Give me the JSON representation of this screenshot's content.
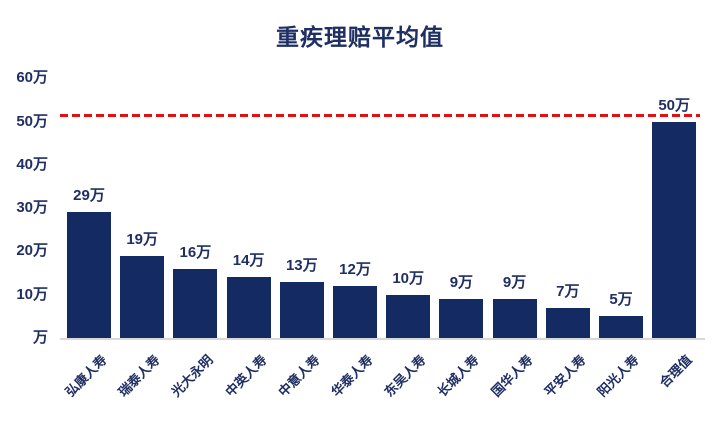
{
  "title": "重疾理赔平均值",
  "colors": {
    "navy_text": "#1F2E63",
    "bar_fill": "#132A62",
    "reference_line_red": "#E01112",
    "axis_gray": "#D9D9D9",
    "background": "#FFFFFF"
  },
  "chart_data": {
    "type": "bar",
    "title": "重疾理赔平均值",
    "categories": [
      "弘康人寿",
      "瑞泰人寿",
      "光大永明",
      "中英人寿",
      "中意人寿",
      "华泰人寿",
      "东吴人寿",
      "长城人寿",
      "国华人寿",
      "平安人寿",
      "阳光人寿",
      "合理值"
    ],
    "values": [
      29,
      19,
      16,
      14,
      13,
      12,
      10,
      9,
      9,
      7,
      5,
      50
    ],
    "data_labels": [
      "29万",
      "19万",
      "16万",
      "14万",
      "13万",
      "12万",
      "10万",
      "9万",
      "9万",
      "7万",
      "5万",
      "50万"
    ],
    "unit": "万",
    "xlabel": "",
    "ylabel": "",
    "ylim": [
      0,
      60
    ],
    "ytick_interval": 10,
    "ytick_values": [
      0,
      10,
      20,
      30,
      40,
      50,
      60
    ],
    "ytick_labels": [
      "万",
      "10万",
      "20万",
      "30万",
      "40万",
      "50万",
      "60万"
    ],
    "grid": false,
    "legend": false,
    "bar_color": "#132A62",
    "reference_line": {
      "value": 50,
      "style": "dashed",
      "color": "#E01112"
    }
  }
}
